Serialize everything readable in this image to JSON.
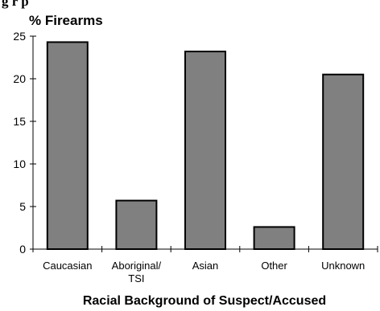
{
  "chart_data": {
    "type": "bar",
    "title_fragment": "g    r  p",
    "ylabel": "% Firearms",
    "xlabel": "Racial Background of Suspect/Accused",
    "categories": [
      [
        "Caucasian"
      ],
      [
        "Aboriginal/",
        "TSI"
      ],
      [
        "Asian"
      ],
      [
        "Other"
      ],
      [
        "Unknown"
      ]
    ],
    "values": [
      24.3,
      5.7,
      23.2,
      2.6,
      20.5
    ],
    "ylim": [
      0,
      25
    ],
    "yticks": [
      "0",
      "5",
      "10",
      "15",
      "20",
      "25"
    ],
    "bar_color": "#808080",
    "bar_stroke": "#000000",
    "grid": false,
    "legend": "none"
  }
}
